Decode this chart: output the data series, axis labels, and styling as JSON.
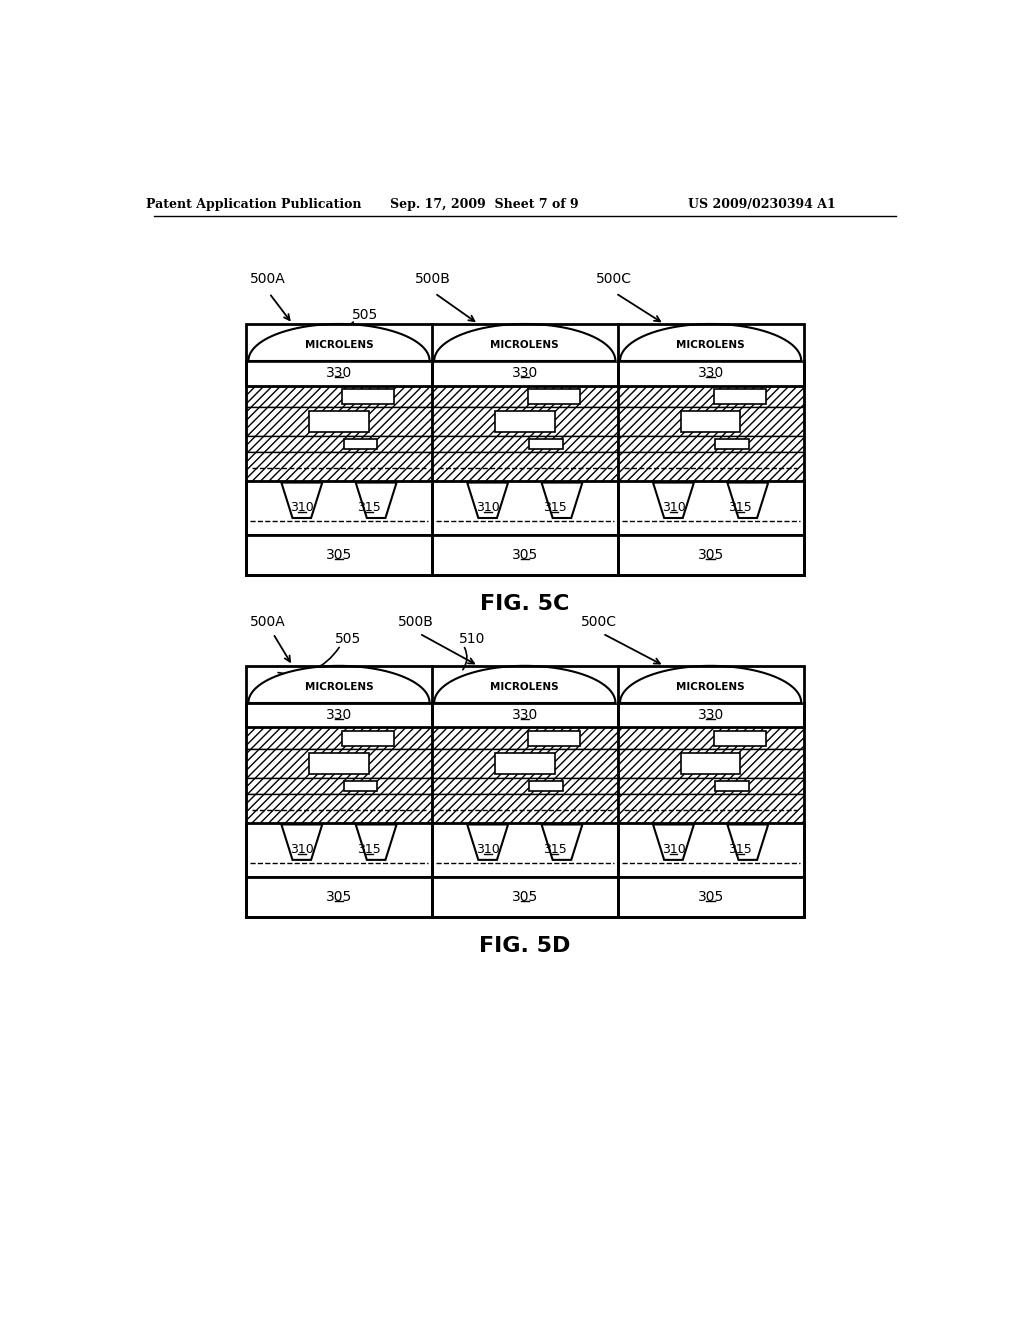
{
  "header_left": "Patent Application Publication",
  "header_center": "Sep. 17, 2009  Sheet 7 of 9",
  "header_right": "US 2009/0230394 A1",
  "fig5c_label": "FIG. 5C",
  "fig5d_label": "FIG. 5D",
  "background_color": "#ffffff"
}
